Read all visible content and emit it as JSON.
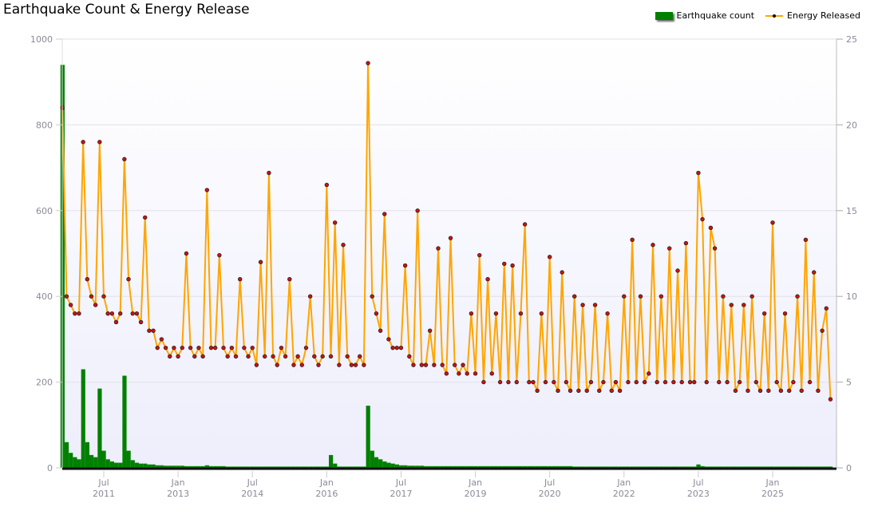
{
  "chart_data": {
    "type": "bar+line",
    "title": "Earthquake Count & Energy Release",
    "legend_position": "top-right",
    "grid": true,
    "left_axis": {
      "ylim": [
        0,
        1000
      ],
      "ticks": [
        "0",
        "200",
        "400",
        "600",
        "800",
        "1000"
      ]
    },
    "right_axis": {
      "ylim": [
        0,
        25
      ],
      "ticks": [
        "0",
        "5",
        "10",
        "15",
        "20",
        "25"
      ]
    },
    "x_ticks": [
      {
        "date": "2011-07",
        "month": "Jul",
        "year": "2011"
      },
      {
        "date": "2013-01",
        "month": "Jan",
        "year": "2013"
      },
      {
        "date": "2014-07",
        "month": "Jul",
        "year": "2014"
      },
      {
        "date": "2016-01",
        "month": "Jan",
        "year": "2016"
      },
      {
        "date": "2017-07",
        "month": "Jul",
        "year": "2017"
      },
      {
        "date": "2019-01",
        "month": "Jan",
        "year": "2019"
      },
      {
        "date": "2020-07",
        "month": "Jul",
        "year": "2020"
      },
      {
        "date": "2022-01",
        "month": "Jan",
        "year": "2022"
      },
      {
        "date": "2023-07",
        "month": "Jul",
        "year": "2023"
      },
      {
        "date": "2025-01",
        "month": "Jan",
        "year": "2025"
      }
    ],
    "colors": {
      "count": "#008000",
      "energy_line": "#ffa500",
      "energy_marker": "#d01010"
    },
    "series": [
      {
        "name": "Earthquake count",
        "axis": "left",
        "kind": "bar",
        "values_by_year": {
          "2010": [
            940,
            60,
            35,
            25
          ],
          "2011": [
            20,
            230,
            60,
            30,
            25,
            185,
            40,
            20,
            15,
            12,
            12,
            215
          ],
          "2012": [
            40,
            18,
            12,
            10,
            10,
            8,
            8,
            6,
            6,
            5,
            5,
            5
          ],
          "2013": [
            5,
            5,
            4,
            4,
            4,
            4,
            4,
            6,
            4,
            4,
            4,
            4
          ],
          "2014": [
            3,
            3,
            3,
            3,
            3,
            3,
            3,
            3,
            3,
            3,
            3,
            3
          ],
          "2015": [
            3,
            3,
            3,
            3,
            3,
            3,
            3,
            3,
            3,
            3,
            3,
            3
          ],
          "2016": [
            3,
            30,
            10,
            3,
            3,
            3,
            3,
            3,
            3,
            3,
            145,
            40
          ],
          "2017": [
            25,
            20,
            15,
            12,
            10,
            8,
            6,
            6,
            5,
            5,
            5,
            5
          ],
          "2018": [
            4,
            4,
            4,
            4,
            4,
            4,
            4,
            4,
            4,
            4,
            4,
            4
          ],
          "2019": [
            4,
            4,
            4,
            4,
            4,
            4,
            4,
            4,
            4,
            4,
            4,
            4
          ],
          "2020": [
            4,
            4,
            4,
            4,
            4,
            4,
            4,
            4,
            4,
            4,
            4,
            4
          ],
          "2021": [
            3,
            3,
            3,
            3,
            3,
            3,
            3,
            3,
            3,
            3,
            3,
            3
          ],
          "2022": [
            3,
            3,
            3,
            3,
            3,
            3,
            3,
            3,
            3,
            3,
            3,
            3
          ],
          "2023": [
            3,
            3,
            3,
            3,
            3,
            3,
            8,
            4,
            3,
            3,
            3,
            3
          ],
          "2024": [
            3,
            3,
            3,
            3,
            3,
            3,
            3,
            3,
            3,
            3,
            3,
            3
          ],
          "2025": [
            3,
            3,
            3,
            3,
            3,
            3,
            3,
            3,
            3,
            3,
            3,
            3
          ],
          "2026": [
            3,
            3,
            3
          ]
        },
        "first_month": "2010-09"
      },
      {
        "name": "Energy Released",
        "axis": "right",
        "kind": "line",
        "values_by_year": {
          "2010": [
            21,
            10,
            9.5,
            9
          ],
          "2011": [
            9,
            19,
            11,
            10,
            9.5,
            19,
            10,
            9,
            9,
            8.5,
            9,
            18
          ],
          "2012": [
            11,
            9,
            9,
            8.5,
            14.6,
            8,
            8,
            7,
            7.5,
            7,
            6.5,
            7
          ],
          "2013": [
            6.5,
            7,
            12.5,
            7,
            6.5,
            7,
            6.5,
            16.2,
            7,
            7,
            12.4,
            7
          ],
          "2014": [
            6.5,
            7,
            6.5,
            11,
            7,
            6.5,
            7,
            6,
            12,
            6.5,
            17.2,
            6.5
          ],
          "2015": [
            6,
            7,
            6.5,
            11,
            6,
            6.5,
            6,
            7,
            10,
            6.5,
            6,
            6.5
          ],
          "2016": [
            16.5,
            6.5,
            14.3,
            6,
            13,
            6.5,
            6,
            6,
            6.5,
            6,
            23.6,
            10
          ],
          "2017": [
            9,
            8,
            14.8,
            7.5,
            7,
            7,
            7,
            11.8,
            6.5,
            6,
            15,
            6
          ],
          "2018": [
            6,
            8,
            6,
            12.8,
            6,
            5.5,
            13.4,
            6,
            5.5,
            6,
            5.5,
            9
          ],
          "2019": [
            5.5,
            12.4,
            5,
            11,
            5.5,
            9,
            5,
            11.9,
            5,
            11.8,
            5,
            9
          ],
          "2020": [
            14.2,
            5,
            5,
            4.5,
            9,
            5,
            12.3,
            5,
            4.5,
            11.4,
            5,
            4.5
          ],
          "2021": [
            10,
            4.5,
            9.5,
            4.5,
            5,
            9.5,
            4.5,
            5,
            9,
            4.5,
            5,
            4.5
          ],
          "2022": [
            10,
            5,
            13.3,
            5,
            10,
            5,
            5.5,
            13,
            5,
            10,
            5,
            12.8
          ],
          "2023": [
            5,
            11.5,
            5,
            13.1,
            5,
            5,
            17.2,
            14.5,
            5,
            14,
            12.8,
            5
          ],
          "2024": [
            10,
            5,
            9.5,
            4.5,
            5,
            9.5,
            4.5,
            10,
            5,
            4.5,
            9,
            4.5
          ],
          "2025": [
            14.3,
            5,
            4.5,
            9,
            4.5,
            5,
            10,
            4.5,
            13.3,
            5,
            11.4,
            4.5
          ],
          "2026": [
            8,
            9.3,
            4
          ]
        },
        "first_month": "2010-09"
      }
    ]
  }
}
